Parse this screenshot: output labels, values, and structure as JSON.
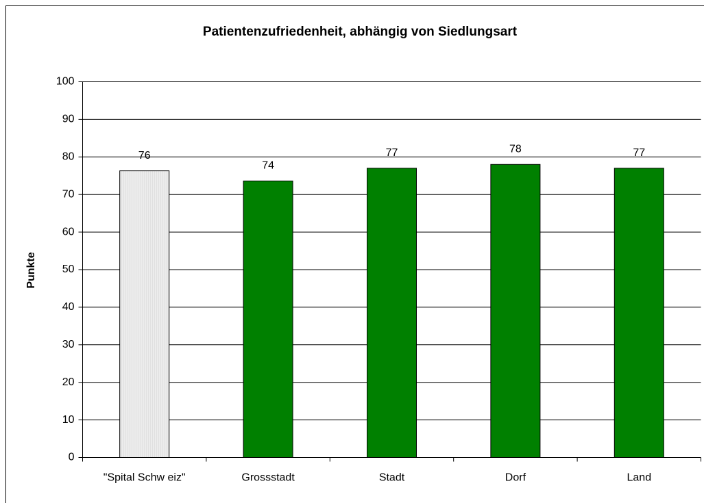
{
  "chart_data": {
    "type": "bar",
    "title": "Patientenzufriedenheit, abhängig von Siedlungsart",
    "y_label": "Punkte",
    "categories": [
      "\"Spital Schw eiz\"",
      "Grossstadt",
      "Stadt",
      "Dorf",
      "Land"
    ],
    "values": [
      76.3,
      73.6,
      77,
      78,
      77
    ],
    "value_labels": [
      "76",
      "74",
      "77",
      "78",
      "77"
    ],
    "colors": [
      "#ececec",
      "#008000",
      "#008000",
      "#008000",
      "#008000"
    ],
    "ylim": [
      0,
      100
    ],
    "yticks": [
      0,
      10,
      20,
      30,
      40,
      50,
      60,
      70,
      80,
      90,
      100
    ],
    "grid": true
  }
}
